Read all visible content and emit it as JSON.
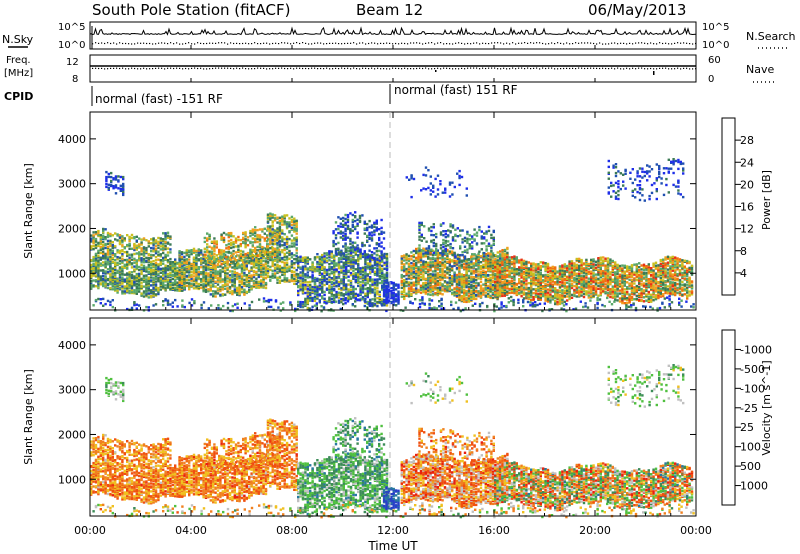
{
  "header": {
    "station": "South Pole Station (fitACF)",
    "beam": "Beam 12",
    "date": "06/May/2013"
  },
  "top_panels": {
    "nsky_label": "N.Sky",
    "nsearch_label": "N.Search",
    "freq_label_1": "Freq.",
    "freq_label_2": "[MHz]",
    "nave_label": "Nave",
    "cpid_label": "CPID",
    "noise_ticks_left": [
      "10^5",
      "10^0"
    ],
    "noise_ticks_right": [
      "10^5",
      "10^0"
    ],
    "freq_ticks_left": [
      "12",
      "8"
    ],
    "nave_ticks_right": [
      "60",
      "0"
    ],
    "cpid_segments": [
      {
        "label": "normal (fast) -151 RF",
        "start_hour": 0,
        "end_hour": 12
      },
      {
        "label": "normal (fast) 151 RF",
        "start_hour": 12,
        "end_hour": 24
      }
    ]
  },
  "axes": {
    "xlabel": "Time UT",
    "ylabel": "Slant Range [km]",
    "x_ticks": [
      "00:00",
      "04:00",
      "08:00",
      "12:00",
      "16:00",
      "20:00",
      "00:00"
    ],
    "y_ticks": [
      "1000",
      "2000",
      "3000",
      "4000"
    ]
  },
  "colorbars": {
    "power": {
      "title": "Power [dB]",
      "labels": [
        "4",
        "8",
        "12",
        "16",
        "20",
        "24",
        "28"
      ],
      "colors": [
        "#1e2ee8",
        "#2050b0",
        "#3c7a55",
        "#5aa86a",
        "#c9c020",
        "#f0a020",
        "#f07010",
        "#e83018"
      ]
    },
    "velocity": {
      "title": "Velocity [m s^-1]",
      "labels": [
        "1000",
        "500",
        "100",
        "25",
        "-25",
        "-100",
        "-500",
        "-1000"
      ],
      "colors": [
        "#2840c8",
        "#2878a0",
        "#3c8c58",
        "#50c040",
        "#c0c0c0",
        "#f0c020",
        "#f08020",
        "#f05010",
        "#e82010"
      ]
    }
  },
  "chart_data": [
    {
      "type": "heatmap",
      "title": "Power",
      "xlabel": "Time UT",
      "ylabel": "Slant Range [km]",
      "xlim": [
        0,
        24
      ],
      "ylim": [
        180,
        4600
      ],
      "colorbar": "Power [dB]",
      "clim": [
        0,
        30
      ],
      "grid": false,
      "note": "Backscatter echoes between ~500 and ~2000 km; weaker scatter near 3000 km around 01:00 and 21-23 UT."
    },
    {
      "type": "heatmap",
      "title": "Velocity",
      "xlabel": "Time UT",
      "ylabel": "Slant Range [km]",
      "xlim": [
        0,
        24
      ],
      "ylim": [
        180,
        4600
      ],
      "colorbar": "Velocity [m s^-1]",
      "clim": [
        -1000,
        1000
      ],
      "grid": false
    }
  ]
}
